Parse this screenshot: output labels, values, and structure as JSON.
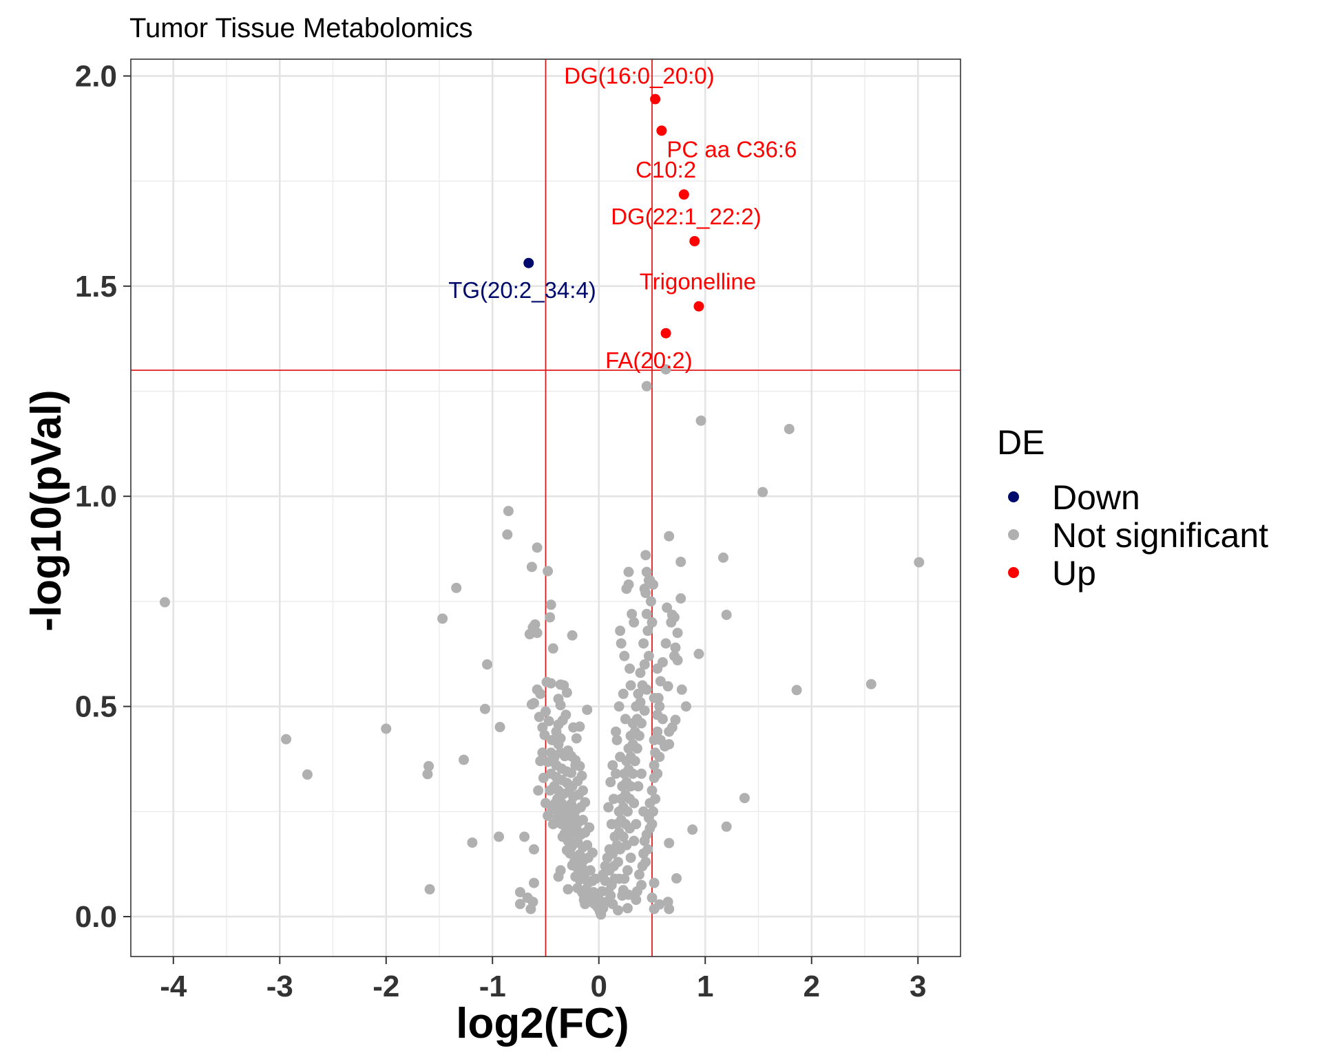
{
  "chart_data": {
    "type": "scatter",
    "title": "Tumor Tissue Metabolomics",
    "xlabel": "log2(FC)",
    "ylabel": "-log10(pVal)",
    "xlim": [
      -4.4,
      3.4
    ],
    "ylim": [
      -0.095,
      2.04
    ],
    "x_ticks": [
      -4,
      -3,
      -2,
      -1,
      0,
      1,
      2,
      3
    ],
    "x_tick_labels": [
      "-4",
      "-3",
      "-2",
      "-1",
      "0",
      "1",
      "2",
      "3"
    ],
    "y_ticks": [
      0.0,
      0.5,
      1.0,
      1.5,
      2.0
    ],
    "y_tick_labels": [
      "0.0",
      "0.5",
      "1.0",
      "1.5",
      "2.0"
    ],
    "thresholds": {
      "fc_lines": [
        -0.5,
        0.5
      ],
      "p_line": 1.3
    },
    "threshold_color": "#e31a1c",
    "legend": {
      "title": "DE",
      "position": "right",
      "entries": [
        {
          "label": "Down",
          "color": "#000a6b"
        },
        {
          "label": "Not significant",
          "color": "#b0b0b0"
        },
        {
          "label": "Up",
          "color": "#ff0000"
        }
      ]
    },
    "significant": [
      {
        "name": "DG(16:0_20:0)",
        "x": 0.53,
        "y": 1.945,
        "group": "Up",
        "label_dx": -0.15,
        "label_dy": 0.055
      },
      {
        "name": "PC aa C36:6",
        "x": 0.59,
        "y": 1.87,
        "group": "Up",
        "label_dx": 0.66,
        "label_dy": -0.045
      },
      {
        "name": "C10:2",
        "x": 0.8,
        "y": 1.718,
        "group": "Up",
        "label_dx": -0.17,
        "label_dy": 0.058
      },
      {
        "name": "DG(22:1_22:2)",
        "x": 0.9,
        "y": 1.607,
        "group": "Up",
        "label_dx": -0.08,
        "label_dy": 0.058
      },
      {
        "name": "TG(20:2_34:4)",
        "x": -0.66,
        "y": 1.555,
        "group": "Down",
        "label_dx": -0.06,
        "label_dy": -0.065
      },
      {
        "name": "Trigonelline",
        "x": 0.94,
        "y": 1.452,
        "group": "Up",
        "label_dx": -0.01,
        "label_dy": 0.058
      },
      {
        "name": "FA(20:2)",
        "x": 0.63,
        "y": 1.388,
        "group": "Up",
        "label_dx": -0.16,
        "label_dy": -0.065
      }
    ],
    "not_significant": [
      [
        -4.08,
        0.748
      ],
      [
        -2.94,
        0.422
      ],
      [
        -2.74,
        0.338
      ],
      [
        -2.0,
        0.447
      ],
      [
        -1.6,
        0.358
      ],
      [
        -1.61,
        0.339
      ],
      [
        -1.59,
        0.065
      ],
      [
        -1.47,
        0.709
      ],
      [
        -1.34,
        0.782
      ],
      [
        -1.27,
        0.373
      ],
      [
        -1.19,
        0.176
      ],
      [
        -1.05,
        0.6
      ],
      [
        -1.07,
        0.494
      ],
      [
        -0.93,
        0.451
      ],
      [
        -0.94,
        0.19
      ],
      [
        -0.85,
        0.965
      ],
      [
        -0.86,
        0.909
      ],
      [
        -0.58,
        0.878
      ],
      [
        -0.63,
        0.832
      ],
      [
        -0.48,
        0.822
      ],
      [
        -0.45,
        0.742
      ],
      [
        -0.46,
        0.712
      ],
      [
        -0.62,
        0.688
      ],
      [
        -0.6,
        0.695
      ],
      [
        -0.65,
        0.672
      ],
      [
        -0.58,
        0.675
      ],
      [
        -0.25,
        0.669
      ],
      [
        -0.43,
        0.638
      ],
      [
        -0.49,
        0.558
      ],
      [
        -0.45,
        0.555
      ],
      [
        -0.55,
        0.53
      ],
      [
        -0.58,
        0.54
      ],
      [
        -0.47,
        0.465
      ],
      [
        -0.56,
        0.475
      ],
      [
        -0.63,
        0.505
      ],
      [
        -0.61,
        0.508
      ],
      [
        -0.53,
        0.45
      ],
      [
        -0.51,
        0.432
      ],
      [
        -0.5,
        0.488
      ],
      [
        -0.38,
        0.518
      ],
      [
        -0.36,
        0.552
      ],
      [
        -0.33,
        0.55
      ],
      [
        -0.3,
        0.533
      ],
      [
        -0.36,
        0.503
      ],
      [
        -0.31,
        0.48
      ],
      [
        -0.24,
        0.45
      ],
      [
        -0.18,
        0.452
      ],
      [
        -0.21,
        0.424
      ],
      [
        -0.11,
        0.492
      ],
      [
        -0.38,
        0.457
      ],
      [
        -0.34,
        0.467
      ],
      [
        -0.4,
        0.44
      ],
      [
        -0.44,
        0.42
      ],
      [
        -0.36,
        0.424
      ],
      [
        -0.38,
        0.41
      ],
      [
        -0.45,
        0.39
      ],
      [
        -0.42,
        0.378
      ],
      [
        -0.48,
        0.368
      ],
      [
        -0.36,
        0.39
      ],
      [
        -0.32,
        0.382
      ],
      [
        -0.29,
        0.395
      ],
      [
        -0.26,
        0.382
      ],
      [
        -0.22,
        0.372
      ],
      [
        -0.4,
        0.36
      ],
      [
        -0.35,
        0.352
      ],
      [
        -0.3,
        0.345
      ],
      [
        -0.26,
        0.342
      ],
      [
        -0.22,
        0.36
      ],
      [
        -0.18,
        0.358
      ],
      [
        -0.45,
        0.34
      ],
      [
        -0.4,
        0.332
      ],
      [
        -0.35,
        0.325
      ],
      [
        -0.3,
        0.318
      ],
      [
        -0.25,
        0.31
      ],
      [
        -0.2,
        0.322
      ],
      [
        -0.16,
        0.335
      ],
      [
        -0.42,
        0.31
      ],
      [
        -0.38,
        0.3
      ],
      [
        -0.33,
        0.292
      ],
      [
        -0.28,
        0.298
      ],
      [
        -0.24,
        0.285
      ],
      [
        -0.19,
        0.29
      ],
      [
        -0.15,
        0.3
      ],
      [
        -0.39,
        0.28
      ],
      [
        -0.35,
        0.27
      ],
      [
        -0.3,
        0.262
      ],
      [
        -0.26,
        0.268
      ],
      [
        -0.21,
        0.255
      ],
      [
        -0.17,
        0.26
      ],
      [
        -0.13,
        0.272
      ],
      [
        -0.37,
        0.25
      ],
      [
        -0.33,
        0.24
      ],
      [
        -0.28,
        0.232
      ],
      [
        -0.23,
        0.238
      ],
      [
        -0.19,
        0.225
      ],
      [
        -0.15,
        0.23
      ],
      [
        -0.35,
        0.22
      ],
      [
        -0.3,
        0.21
      ],
      [
        -0.26,
        0.202
      ],
      [
        -0.21,
        0.208
      ],
      [
        -0.17,
        0.195
      ],
      [
        -0.13,
        0.2
      ],
      [
        -0.09,
        0.212
      ],
      [
        -0.34,
        0.19
      ],
      [
        -0.29,
        0.18
      ],
      [
        -0.24,
        0.172
      ],
      [
        -0.2,
        0.178
      ],
      [
        -0.15,
        0.165
      ],
      [
        -0.11,
        0.17
      ],
      [
        -0.27,
        0.15
      ],
      [
        -0.22,
        0.142
      ],
      [
        -0.18,
        0.148
      ],
      [
        -0.14,
        0.135
      ],
      [
        -0.1,
        0.14
      ],
      [
        -0.06,
        0.152
      ],
      [
        -0.25,
        0.122
      ],
      [
        -0.2,
        0.115
      ],
      [
        -0.16,
        0.118
      ],
      [
        -0.12,
        0.105
      ],
      [
        -0.08,
        0.11
      ],
      [
        -0.22,
        0.095
      ],
      [
        -0.18,
        0.088
      ],
      [
        -0.14,
        0.092
      ],
      [
        -0.1,
        0.08
      ],
      [
        -0.06,
        0.085
      ],
      [
        -0.03,
        0.09
      ],
      [
        -0.2,
        0.068
      ],
      [
        -0.16,
        0.06
      ],
      [
        -0.12,
        0.065
      ],
      [
        -0.08,
        0.055
      ],
      [
        -0.05,
        0.058
      ],
      [
        -0.14,
        0.04
      ],
      [
        -0.1,
        0.035
      ],
      [
        -0.07,
        0.038
      ],
      [
        -0.04,
        0.03
      ],
      [
        -0.01,
        0.022
      ],
      [
        0.01,
        0.012
      ],
      [
        0.02,
        0.005
      ],
      [
        -0.3,
        0.25
      ],
      [
        -0.27,
        0.22
      ],
      [
        -0.32,
        0.198
      ],
      [
        -0.28,
        0.19
      ],
      [
        -0.24,
        0.2
      ],
      [
        -0.26,
        0.165
      ],
      [
        -0.3,
        0.158
      ],
      [
        -0.23,
        0.13
      ],
      [
        -0.19,
        0.12
      ],
      [
        -0.16,
        0.1
      ],
      [
        -0.36,
        0.29
      ],
      [
        -0.41,
        0.27
      ],
      [
        -0.39,
        0.235
      ],
      [
        -0.43,
        0.22
      ],
      [
        -0.46,
        0.3
      ],
      [
        -0.44,
        0.255
      ],
      [
        -0.48,
        0.24
      ],
      [
        -0.52,
        0.33
      ],
      [
        -0.5,
        0.27
      ],
      [
        -0.55,
        0.37
      ],
      [
        -0.53,
        0.39
      ],
      [
        -0.57,
        0.3
      ],
      [
        -0.7,
        0.19
      ],
      [
        -0.61,
        0.16
      ],
      [
        -0.74,
        0.058
      ],
      [
        -0.67,
        0.045
      ],
      [
        -0.74,
        0.03
      ],
      [
        -0.62,
        0.035
      ],
      [
        -0.64,
        0.018
      ],
      [
        -0.61,
        0.08
      ],
      [
        -0.38,
        0.095
      ],
      [
        -0.29,
        0.065
      ],
      [
        -0.15,
        0.055
      ],
      [
        -0.06,
        0.035
      ],
      [
        0.0,
        0.04
      ],
      [
        0.03,
        0.06
      ],
      [
        -0.36,
        0.11
      ],
      [
        -0.13,
        0.03
      ],
      [
        0.04,
        0.1
      ],
      [
        0.06,
        0.12
      ],
      [
        0.08,
        0.14
      ],
      [
        0.1,
        0.16
      ],
      [
        0.06,
        0.085
      ],
      [
        0.09,
        0.06
      ],
      [
        0.12,
        0.075
      ],
      [
        0.15,
        0.09
      ],
      [
        0.07,
        0.035
      ],
      [
        0.11,
        0.05
      ],
      [
        0.13,
        0.03
      ],
      [
        0.04,
        0.02
      ],
      [
        0.02,
        0.025
      ],
      [
        0.1,
        0.11
      ],
      [
        0.14,
        0.12
      ],
      [
        0.18,
        0.13
      ],
      [
        0.13,
        0.15
      ],
      [
        0.17,
        0.17
      ],
      [
        0.2,
        0.16
      ],
      [
        0.15,
        0.19
      ],
      [
        0.19,
        0.2
      ],
      [
        0.23,
        0.19
      ],
      [
        0.17,
        0.22
      ],
      [
        0.21,
        0.23
      ],
      [
        0.25,
        0.22
      ],
      [
        0.19,
        0.25
      ],
      [
        0.23,
        0.26
      ],
      [
        0.27,
        0.25
      ],
      [
        0.21,
        0.28
      ],
      [
        0.25,
        0.29
      ],
      [
        0.29,
        0.28
      ],
      [
        0.22,
        0.31
      ],
      [
        0.26,
        0.32
      ],
      [
        0.3,
        0.31
      ],
      [
        0.24,
        0.34
      ],
      [
        0.28,
        0.35
      ],
      [
        0.32,
        0.34
      ],
      [
        0.26,
        0.37
      ],
      [
        0.3,
        0.38
      ],
      [
        0.34,
        0.37
      ],
      [
        0.28,
        0.4
      ],
      [
        0.32,
        0.41
      ],
      [
        0.36,
        0.4
      ],
      [
        0.3,
        0.43
      ],
      [
        0.34,
        0.44
      ],
      [
        0.38,
        0.43
      ],
      [
        0.32,
        0.46
      ],
      [
        0.36,
        0.47
      ],
      [
        0.4,
        0.46
      ],
      [
        0.35,
        0.5
      ],
      [
        0.39,
        0.51
      ],
      [
        0.43,
        0.49
      ],
      [
        0.37,
        0.53
      ],
      [
        0.41,
        0.55
      ],
      [
        0.45,
        0.54
      ],
      [
        0.39,
        0.58
      ],
      [
        0.43,
        0.6
      ],
      [
        0.47,
        0.62
      ],
      [
        0.42,
        0.65
      ],
      [
        0.46,
        0.68
      ],
      [
        0.5,
        0.7
      ],
      [
        0.45,
        0.72
      ],
      [
        0.49,
        0.75
      ],
      [
        0.43,
        0.78
      ],
      [
        0.47,
        0.8
      ],
      [
        0.51,
        0.79
      ],
      [
        0.45,
        0.82
      ],
      [
        0.44,
        0.86
      ],
      [
        0.66,
        0.905
      ],
      [
        0.77,
        0.844
      ],
      [
        0.64,
        0.735
      ],
      [
        0.69,
        0.718
      ],
      [
        0.71,
        0.712
      ],
      [
        0.68,
        0.7
      ],
      [
        0.74,
        0.675
      ],
      [
        0.72,
        0.64
      ],
      [
        0.71,
        0.62
      ],
      [
        0.74,
        0.61
      ],
      [
        0.63,
        0.65
      ],
      [
        0.6,
        0.605
      ],
      [
        0.55,
        0.59
      ],
      [
        0.58,
        0.56
      ],
      [
        0.65,
        0.548
      ],
      [
        0.56,
        0.52
      ],
      [
        0.52,
        0.52
      ],
      [
        0.57,
        0.5
      ],
      [
        0.55,
        0.48
      ],
      [
        0.6,
        0.47
      ],
      [
        0.72,
        0.468
      ],
      [
        0.69,
        0.45
      ],
      [
        0.66,
        0.44
      ],
      [
        0.55,
        0.44
      ],
      [
        0.58,
        0.42
      ],
      [
        0.52,
        0.42
      ],
      [
        0.53,
        0.39
      ],
      [
        0.57,
        0.38
      ],
      [
        0.62,
        0.405
      ],
      [
        0.66,
        0.41
      ],
      [
        0.52,
        0.36
      ],
      [
        0.55,
        0.34
      ],
      [
        0.52,
        0.33
      ],
      [
        0.5,
        0.3
      ],
      [
        0.53,
        0.28
      ],
      [
        0.48,
        0.27
      ],
      [
        0.51,
        0.25
      ],
      [
        0.47,
        0.235
      ],
      [
        0.5,
        0.22
      ],
      [
        0.48,
        0.21
      ],
      [
        0.45,
        0.195
      ],
      [
        0.43,
        0.18
      ],
      [
        0.46,
        0.16
      ],
      [
        0.42,
        0.15
      ],
      [
        0.44,
        0.13
      ],
      [
        0.41,
        0.12
      ],
      [
        0.38,
        0.1
      ],
      [
        0.4,
        0.075
      ],
      [
        0.36,
        0.06
      ],
      [
        0.35,
        0.04
      ],
      [
        0.28,
        0.052
      ],
      [
        0.23,
        0.063
      ],
      [
        0.19,
        0.09
      ],
      [
        0.27,
        0.02
      ],
      [
        0.18,
        0.015
      ],
      [
        0.5,
        0.045
      ],
      [
        0.52,
        0.08
      ],
      [
        0.65,
        0.035
      ],
      [
        0.66,
        0.018
      ],
      [
        0.52,
        0.018
      ],
      [
        0.57,
        0.029
      ],
      [
        0.73,
        0.091
      ],
      [
        0.88,
        0.207
      ],
      [
        0.66,
        0.175
      ],
      [
        0.78,
        0.54
      ],
      [
        0.82,
        0.5
      ],
      [
        0.94,
        0.625
      ],
      [
        0.77,
        0.757
      ],
      [
        0.48,
        0.8
      ],
      [
        0.44,
        0.77
      ],
      [
        0.28,
        0.79
      ],
      [
        0.31,
        0.72
      ],
      [
        0.33,
        0.7
      ],
      [
        0.28,
        0.82
      ],
      [
        0.26,
        0.78
      ],
      [
        0.2,
        0.68
      ],
      [
        0.24,
        0.62
      ],
      [
        0.29,
        0.59
      ],
      [
        0.3,
        0.55
      ],
      [
        0.21,
        0.65
      ],
      [
        0.19,
        0.5
      ],
      [
        0.23,
        0.53
      ],
      [
        0.25,
        0.47
      ],
      [
        0.16,
        0.44
      ],
      [
        0.2,
        0.38
      ],
      [
        0.13,
        0.36
      ],
      [
        0.16,
        0.34
      ],
      [
        0.11,
        0.32
      ],
      [
        0.14,
        0.28
      ],
      [
        0.09,
        0.26
      ],
      [
        0.12,
        0.22
      ],
      [
        0.17,
        0.42
      ],
      [
        0.96,
        1.18
      ],
      [
        0.45,
        1.262
      ],
      [
        0.63,
        1.302
      ],
      [
        1.17,
        0.854
      ],
      [
        1.2,
        0.718
      ],
      [
        1.2,
        0.214
      ],
      [
        1.37,
        0.282
      ],
      [
        1.54,
        1.01
      ],
      [
        1.79,
        1.16
      ],
      [
        1.86,
        0.539
      ],
      [
        2.56,
        0.553
      ],
      [
        3.01,
        0.843
      ],
      [
        0.42,
        0.25
      ],
      [
        0.37,
        0.31
      ],
      [
        0.4,
        0.34
      ],
      [
        0.35,
        0.22
      ],
      [
        0.33,
        0.18
      ],
      [
        0.3,
        0.14
      ],
      [
        0.27,
        0.11
      ],
      [
        0.24,
        0.09
      ],
      [
        0.22,
        0.05
      ],
      [
        0.29,
        0.21
      ],
      [
        0.26,
        0.17
      ],
      [
        0.33,
        0.27
      ]
    ]
  }
}
